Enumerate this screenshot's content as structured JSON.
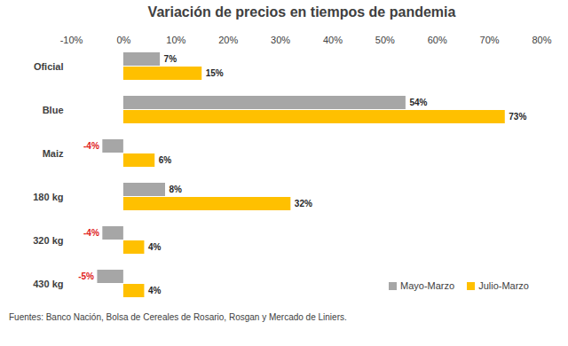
{
  "chart_data": {
    "type": "bar",
    "title": "Variación de precios en tiempos de pandemia",
    "orientation": "horizontal",
    "categories": [
      "Oficial",
      "Blue",
      "Maiz",
      "180 kg",
      "320 kg",
      "430 kg"
    ],
    "series": [
      {
        "name": "Mayo-Marzo",
        "color": "#a6a6a6",
        "values": [
          7,
          54,
          -4,
          8,
          -4,
          -5
        ],
        "value_labels": [
          "7%",
          "54%",
          "-4%",
          "8%",
          "-4%",
          "-5%"
        ]
      },
      {
        "name": "Julio-Marzo",
        "color": "#ffc000",
        "values": [
          15,
          73,
          6,
          32,
          4,
          4
        ],
        "value_labels": [
          "15%",
          "73%",
          "6%",
          "32%",
          "4%",
          "4%"
        ]
      }
    ],
    "xlim": [
      -10,
      80
    ],
    "xticks": [
      {
        "value": -10,
        "label": "-10%"
      },
      {
        "value": 0,
        "label": "0%"
      },
      {
        "value": 10,
        "label": "10%"
      },
      {
        "value": 20,
        "label": "20%"
      },
      {
        "value": 30,
        "label": "30%"
      },
      {
        "value": 40,
        "label": "40%"
      },
      {
        "value": 50,
        "label": "50%"
      },
      {
        "value": 60,
        "label": "60%"
      },
      {
        "value": 70,
        "label": "70%"
      },
      {
        "value": 80,
        "label": "80%"
      }
    ],
    "grid": false,
    "data_labels": true,
    "legend": "lower right",
    "caption": "Fuentes: Banco Nación, Bolsa de Cereales de Rosario, Rosgan y Mercado de Liniers."
  }
}
